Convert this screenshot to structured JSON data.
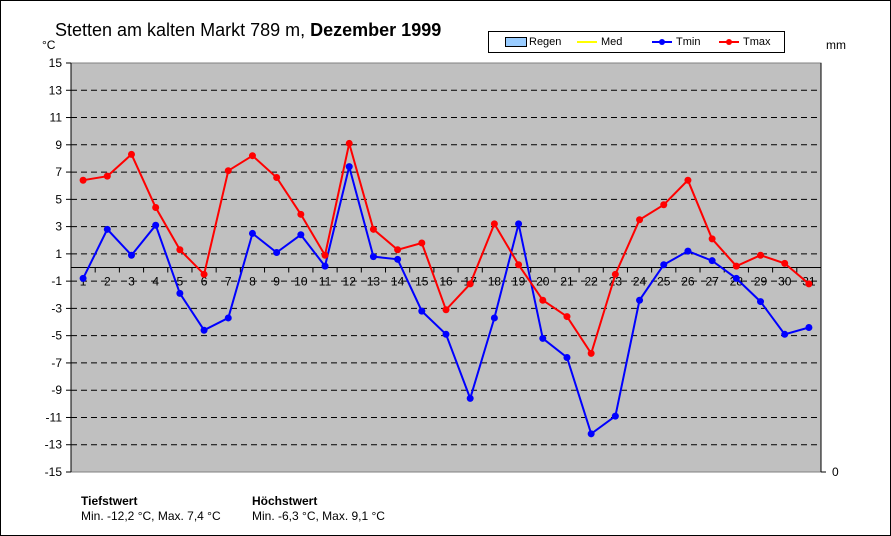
{
  "title": {
    "station": "Stetten am kalten Markt 789 m,",
    "period": "Dezember 1999"
  },
  "units": {
    "left": "°C",
    "right": "mm"
  },
  "legend": [
    {
      "label": "Regen",
      "color": "#99ccff",
      "kind": "bar"
    },
    {
      "label": "Med",
      "color": "#ffff00",
      "kind": "line"
    },
    {
      "label": "Tmin",
      "color": "#0000ff",
      "kind": "line"
    },
    {
      "label": "Tmax",
      "color": "#ff0000",
      "kind": "line"
    }
  ],
  "stats": {
    "tief_heading": "Tiefstwert",
    "tief_text": "Min. -12,2 °C, Max. 7,4 °C",
    "hoch_heading": "Höchstwert",
    "hoch_text": "Min. -6,3 °C, Max. 9,1 °C"
  },
  "chart_data": {
    "type": "line",
    "x": [
      1,
      2,
      3,
      4,
      5,
      6,
      7,
      8,
      9,
      10,
      11,
      12,
      13,
      14,
      15,
      16,
      17,
      18,
      19,
      20,
      21,
      22,
      23,
      24,
      25,
      26,
      27,
      28,
      29,
      30,
      31
    ],
    "ylim": [
      -15,
      15
    ],
    "yticks": [
      15,
      13,
      11,
      9,
      7,
      5,
      3,
      1,
      -1,
      -3,
      -5,
      -7,
      -9,
      -11,
      -13,
      -15
    ],
    "y2ticks": [
      "0"
    ],
    "grid": true,
    "plot_background": "#c0c0c0",
    "series": [
      {
        "name": "Tmin",
        "color": "#0000ff",
        "values": [
          -0.8,
          2.8,
          0.9,
          3.1,
          -1.9,
          -4.6,
          -3.7,
          2.5,
          1.1,
          2.4,
          0.1,
          7.4,
          0.8,
          0.6,
          -3.2,
          -4.9,
          -9.6,
          -3.7,
          3.2,
          -5.2,
          -6.6,
          -12.2,
          -10.9,
          -2.4,
          0.2,
          1.2,
          0.5,
          -0.8,
          -2.5,
          -4.9,
          -4.4
        ]
      },
      {
        "name": "Tmax",
        "color": "#ff0000",
        "values": [
          6.4,
          6.7,
          8.3,
          4.4,
          1.3,
          -0.5,
          7.1,
          8.2,
          6.6,
          3.9,
          0.9,
          9.1,
          2.8,
          1.3,
          1.8,
          -3.1,
          -1.2,
          3.2,
          0.2,
          -2.4,
          -3.6,
          -6.3,
          -0.5,
          3.5,
          4.6,
          6.4,
          2.1,
          0.1,
          0.9,
          0.3,
          -1.2
        ]
      }
    ]
  }
}
